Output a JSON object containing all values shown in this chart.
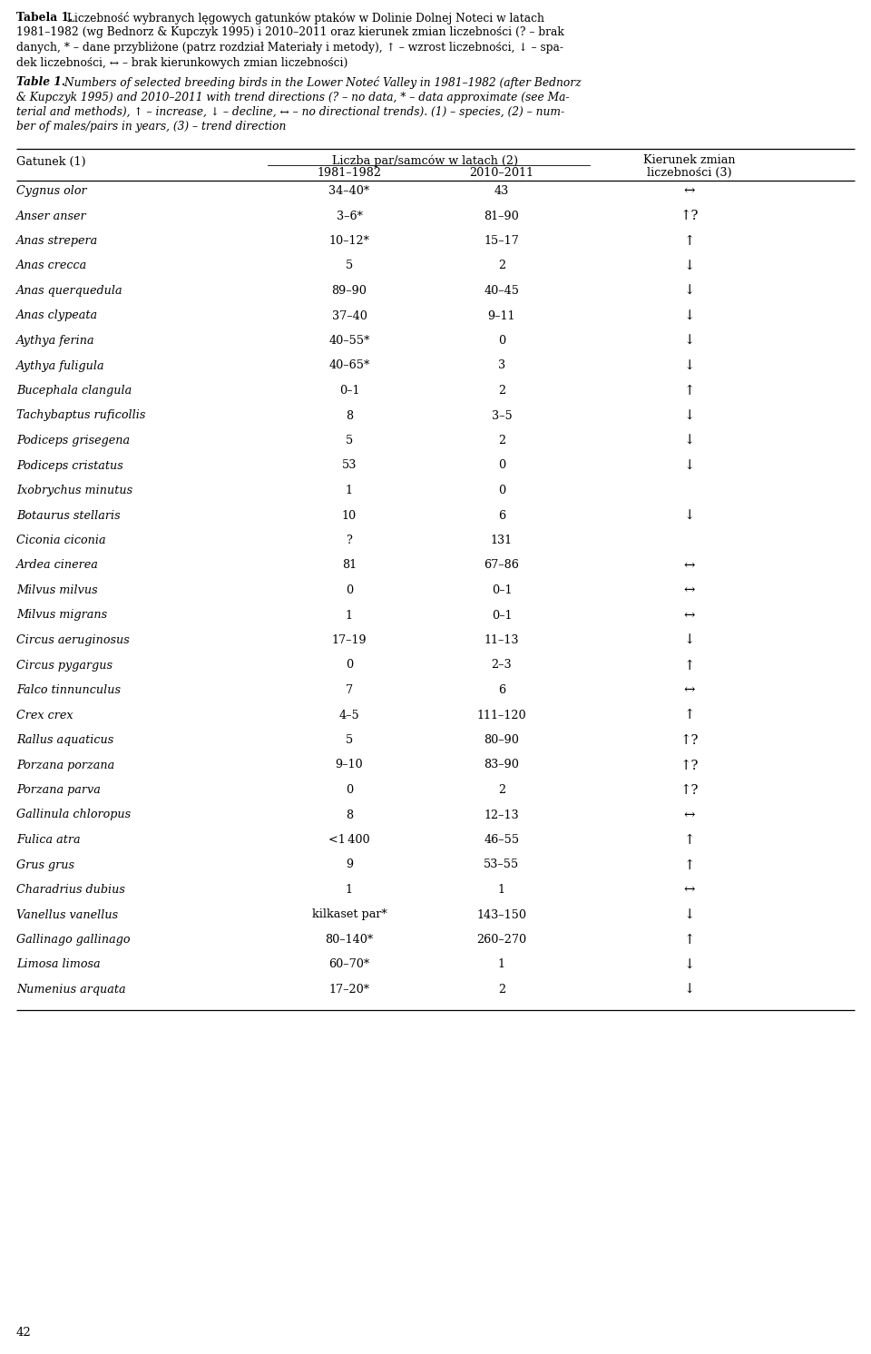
{
  "pl_line1_bold": "Tabela 1.",
  "pl_line1_rest": " Liczebność wybranych lęgowych gatunków ptaków w Dolinie Dolnej Noteci w latach",
  "pl_line2": "1981–1982 (wg Bednorz & Kupczyk 1995) i 2010–2011 oraz kierunek zmian liczebności (? – brak",
  "pl_line3": "danych, * – dane przybliżone (patrz rozdział Materiały i metody), ↑ – wzrost liczebności, ↓ – spa-",
  "pl_line4": "dek liczebności, ↔ – brak kierunkowych zmian liczebności)",
  "en_line1_bold": "Table 1.",
  "en_line1_rest": " Numbers of selected breeding birds in the Lower Noteć Valley in 1981–1982 (after Bednorz",
  "en_line2": "& Kupczyk 1995) and 2010–2011 with trend directions (? – no data, * – data approximate (see Ma-",
  "en_line3": "terial and methods), ↑ – increase, ↓ – decline, ↔ – no directional trends). (1) – species, (2) – num-",
  "en_line4": "ber of males/pairs in years, (3) – trend direction",
  "col_header_left": "Gatunek (1)",
  "col_header_mid": "Liczba par/samców w latach (2)",
  "col_header_mid_sub1": "1981–1982",
  "col_header_mid_sub2": "2010–2011",
  "col_header_right1": "Kierunek zmian",
  "col_header_right2": "liczebności (3)",
  "page_number": "42",
  "rows": [
    [
      "Cygnus olor",
      "34–40*",
      "43",
      "↔"
    ],
    [
      "Anser anser",
      "3–6*",
      "81–90",
      "↑?"
    ],
    [
      "Anas strepera",
      "10–12*",
      "15–17",
      "↑"
    ],
    [
      "Anas crecca",
      "5",
      "2",
      "↓"
    ],
    [
      "Anas querquedula",
      "89–90",
      "40–45",
      "↓"
    ],
    [
      "Anas clypeata",
      "37–40",
      "9–11",
      "↓"
    ],
    [
      "Aythya ferina",
      "40–55*",
      "0",
      "↓"
    ],
    [
      "Aythya fuligula",
      "40–65*",
      "3",
      "↓"
    ],
    [
      "Bucephala clangula",
      "0–1",
      "2",
      "↑"
    ],
    [
      "Tachybaptus ruficollis",
      "8",
      "3–5",
      "↓"
    ],
    [
      "Podiceps grisegena",
      "5",
      "2",
      "↓"
    ],
    [
      "Podiceps cristatus",
      "53",
      "0",
      "↓"
    ],
    [
      "Ixobrychus minutus",
      "1",
      "0",
      ""
    ],
    [
      "Botaurus stellaris",
      "10",
      "6",
      "↓"
    ],
    [
      "Ciconia ciconia",
      "?",
      "131",
      ""
    ],
    [
      "Ardea cinerea",
      "81",
      "67–86",
      "↔"
    ],
    [
      "Milvus milvus",
      "0",
      "0–1",
      "↔"
    ],
    [
      "Milvus migrans",
      "1",
      "0–1",
      "↔"
    ],
    [
      "Circus aeruginosus",
      "17–19",
      "11–13",
      "↓"
    ],
    [
      "Circus pygargus",
      "0",
      "2–3",
      "↑"
    ],
    [
      "Falco tinnunculus",
      "7",
      "6",
      "↔"
    ],
    [
      "Crex crex",
      "4–5",
      "111–120",
      "↑"
    ],
    [
      "Rallus aquaticus",
      "5",
      "80–90",
      "↑?"
    ],
    [
      "Porzana porzana",
      "9–10",
      "83–90",
      "↑?"
    ],
    [
      "Porzana parva",
      "0",
      "2",
      "↑?"
    ],
    [
      "Gallinula chloropus",
      "8",
      "12–13",
      "↔"
    ],
    [
      "Fulica atra",
      "<1 400",
      "46–55",
      "↑"
    ],
    [
      "Grus grus",
      "9",
      "53–55",
      "↑"
    ],
    [
      "Charadrius dubius",
      "1",
      "1",
      "↔"
    ],
    [
      "Vanellus vanellus",
      "kilkaset par*",
      "143–150",
      "↓"
    ],
    [
      "Gallinago gallinago",
      "80–140*",
      "260–270",
      "↑"
    ],
    [
      "Limosa limosa",
      "60–70*",
      "1",
      "↓"
    ],
    [
      "Numenius arquata",
      "17–20*",
      "2",
      "↓"
    ]
  ]
}
